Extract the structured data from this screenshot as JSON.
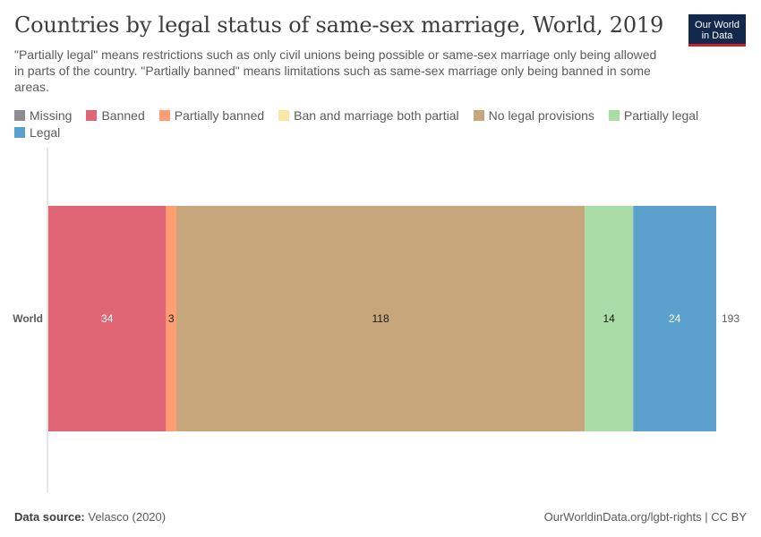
{
  "title": "Countries by legal status of same-sex marriage, World, 2019",
  "subtitle": "\"Partially legal\" means restrictions such as only civil unions being possible or same-sex marriage only being allowed in parts of the country. \"Partially banned\" means limitations such as same-sex marriage only being banned in some areas.",
  "logo": {
    "line1": "Our World",
    "line2": "in Data"
  },
  "legend": [
    {
      "label": "Missing",
      "color": "#8c8c91"
    },
    {
      "label": "Banned",
      "color": "#e06675"
    },
    {
      "label": "Partially banned",
      "color": "#ff9e73"
    },
    {
      "label": "Ban and marriage both partial",
      "color": "#fce6a3"
    },
    {
      "label": "No legal provisions",
      "color": "#c8a67b"
    },
    {
      "label": "Partially legal",
      "color": "#aadca8"
    },
    {
      "label": "Legal",
      "color": "#5ca1cd"
    }
  ],
  "footer": {
    "source_label": "Data source:",
    "source_value": "Velasco (2020)",
    "credit": "OurWorldinData.org/lgbt-rights | CC BY"
  },
  "chart_data": {
    "type": "bar",
    "orientation": "horizontal",
    "stacked": true,
    "categories": [
      "World"
    ],
    "series": [
      {
        "name": "Missing",
        "values": [
          0
        ],
        "color": "#8c8c91"
      },
      {
        "name": "Banned",
        "values": [
          34
        ],
        "color": "#e06675"
      },
      {
        "name": "Partially banned",
        "values": [
          3
        ],
        "color": "#ff9e73"
      },
      {
        "name": "Ban and marriage both partial",
        "values": [
          0
        ],
        "color": "#fce6a3"
      },
      {
        "name": "No legal provisions",
        "values": [
          118
        ],
        "color": "#c8a67b"
      },
      {
        "name": "Partially legal",
        "values": [
          14
        ],
        "color": "#aadca8"
      },
      {
        "name": "Legal",
        "values": [
          24
        ],
        "color": "#5ca1cd"
      }
    ],
    "totals": [
      193
    ],
    "xlim": [
      0,
      193
    ],
    "grid": false,
    "legend_position": "top"
  }
}
